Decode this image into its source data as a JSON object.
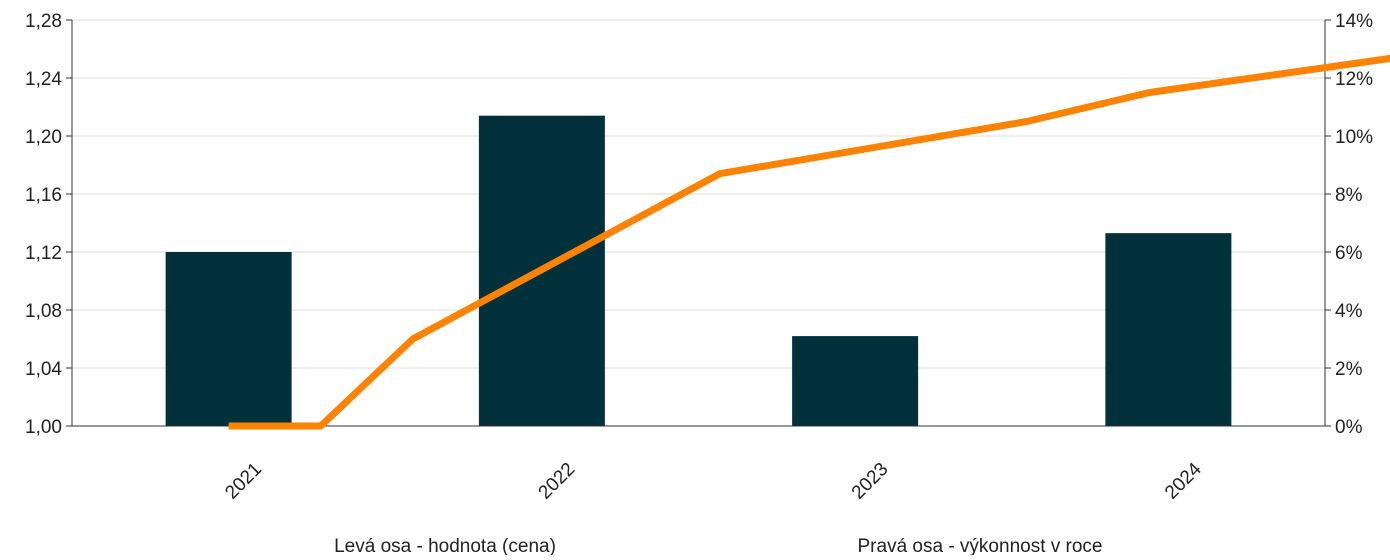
{
  "chart_data": {
    "type": "bar+line",
    "categories": [
      "2021",
      "2022",
      "2023",
      "2024"
    ],
    "left_axis": {
      "ylim": [
        1.0,
        1.28
      ],
      "ticks": [
        "1,00",
        "1,04",
        "1,08",
        "1,12",
        "1,16",
        "1,20",
        "1,24",
        "1,28"
      ]
    },
    "right_axis": {
      "ylim": [
        0,
        14
      ],
      "ticks": [
        "0%",
        "2%",
        "4%",
        "6%",
        "8%",
        "10%",
        "12%",
        "14%"
      ]
    },
    "bar_series": {
      "name": "Levá osa - hodnota (cena)",
      "color": "#02303b",
      "values": [
        1.12,
        1.214,
        1.062,
        1.133
      ]
    },
    "line_series": {
      "name": "Pravá osa - výkonnost v roce",
      "color": "#ff8200",
      "x": [
        0,
        0.3,
        0.6,
        1.6,
        2.6,
        3.0,
        4.0
      ],
      "values": [
        0,
        0,
        3.0,
        8.7,
        10.5,
        11.5,
        13.0
      ]
    },
    "grid": true,
    "legend_position": "bottom"
  }
}
